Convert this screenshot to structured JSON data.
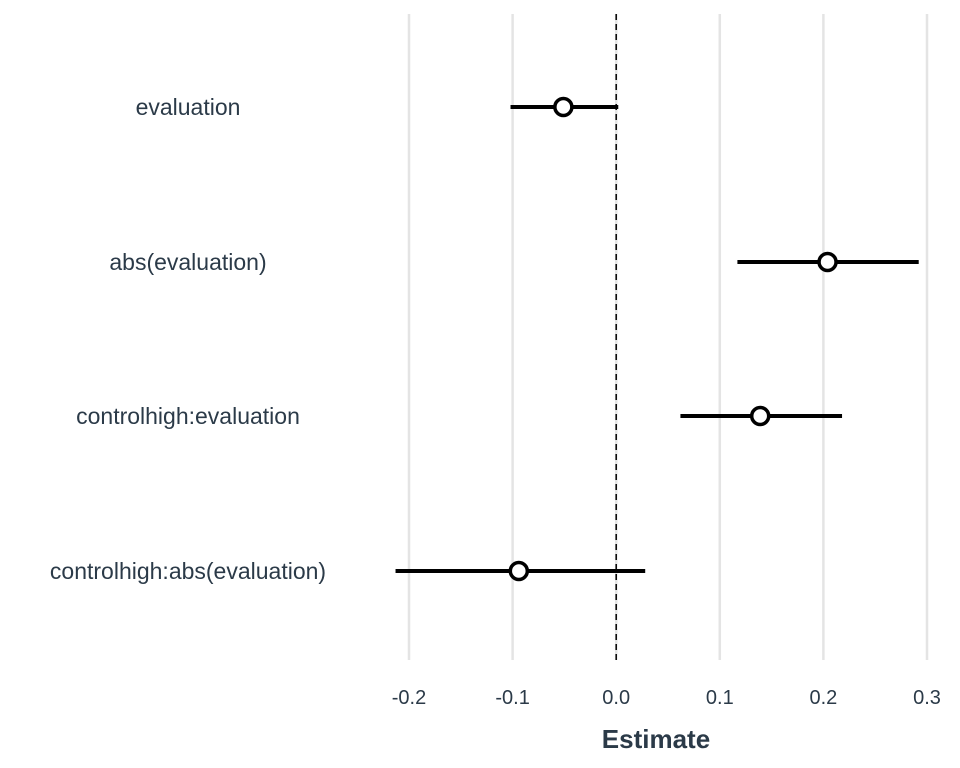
{
  "chart_data": {
    "type": "coefficient-plot",
    "xlabel": "Estimate",
    "xlim": [
      -0.2,
      0.3
    ],
    "xticks": [
      -0.2,
      -0.1,
      0.0,
      0.1,
      0.2,
      0.3
    ],
    "xtick_labels": [
      "-0.2",
      "-0.1",
      "0.0",
      "0.1",
      "0.2",
      "0.3"
    ],
    "reference_line": 0,
    "grid": "vertical",
    "terms": [
      {
        "label": "evaluation",
        "estimate": -0.051,
        "ci_low": -0.102,
        "ci_high": 0.002
      },
      {
        "label": "abs(evaluation)",
        "estimate": 0.204,
        "ci_low": 0.117,
        "ci_high": 0.292
      },
      {
        "label": "controlhigh:evaluation",
        "estimate": 0.139,
        "ci_low": 0.062,
        "ci_high": 0.218
      },
      {
        "label": "controlhigh:abs(evaluation)",
        "estimate": -0.094,
        "ci_low": -0.213,
        "ci_high": 0.028
      }
    ],
    "colors": {
      "grid": "#e4e4e4",
      "line": "#000000",
      "marker_fill": "#ffffff",
      "text": "#2b3a48"
    }
  }
}
